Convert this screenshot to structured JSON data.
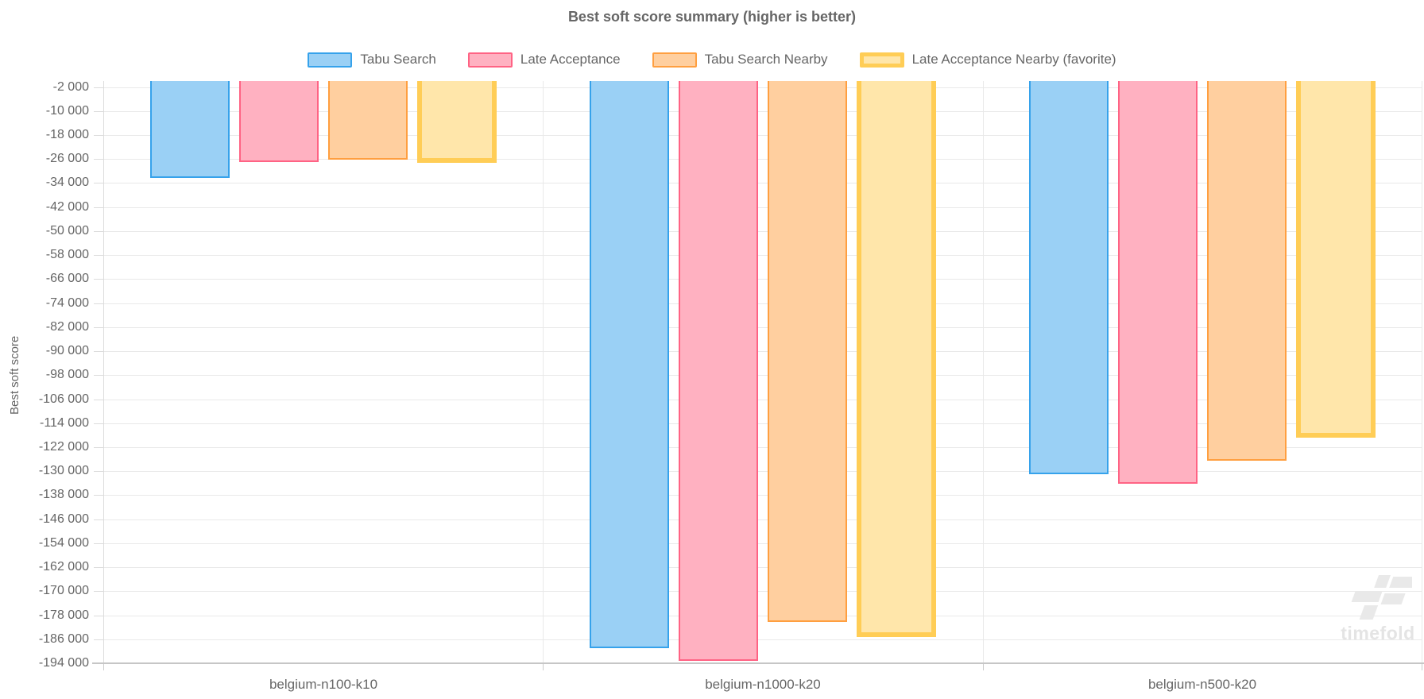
{
  "watermark": "timefold",
  "chart_data": {
    "type": "bar",
    "title": "Best soft score summary (higher is better)",
    "ylabel": "Best soft score",
    "xlabel": "",
    "categories": [
      "belgium-n100-k10",
      "belgium-n1000-k20",
      "belgium-n500-k20"
    ],
    "series": [
      {
        "name": "Tabu Search",
        "fill": "#9ad0f5",
        "border": "#36a2eb",
        "border_width": 2,
        "favorite": false,
        "values": [
          -31900,
          -188800,
          -130700
        ]
      },
      {
        "name": "Late Acceptance",
        "fill": "#ffb1c1",
        "border": "#ff6384",
        "border_width": 2,
        "favorite": false,
        "values": [
          -26800,
          -193000,
          -133800
        ]
      },
      {
        "name": "Tabu Search Nearby",
        "fill": "#ffcf9f",
        "border": "#ff9f40",
        "border_width": 2,
        "favorite": false,
        "values": [
          -25900,
          -180100,
          -126300
        ]
      },
      {
        "name": "Late Acceptance Nearby (favorite)",
        "fill": "#ffe6aa",
        "border": "#ffcd56",
        "border_width": 6,
        "favorite": true,
        "values": [
          -26500,
          -184600,
          -118000
        ]
      }
    ],
    "ylim": [
      -194000,
      0
    ],
    "yticks": {
      "start": -2000,
      "step": -8000,
      "end": -194000
    },
    "tick_format": "space-thousands",
    "grid": true,
    "legend_position": "top",
    "colors": {
      "text": "#666666",
      "grid": "#e9e9e9",
      "axis": "#c6c6c6",
      "watermark": "#e9e9e9"
    }
  }
}
